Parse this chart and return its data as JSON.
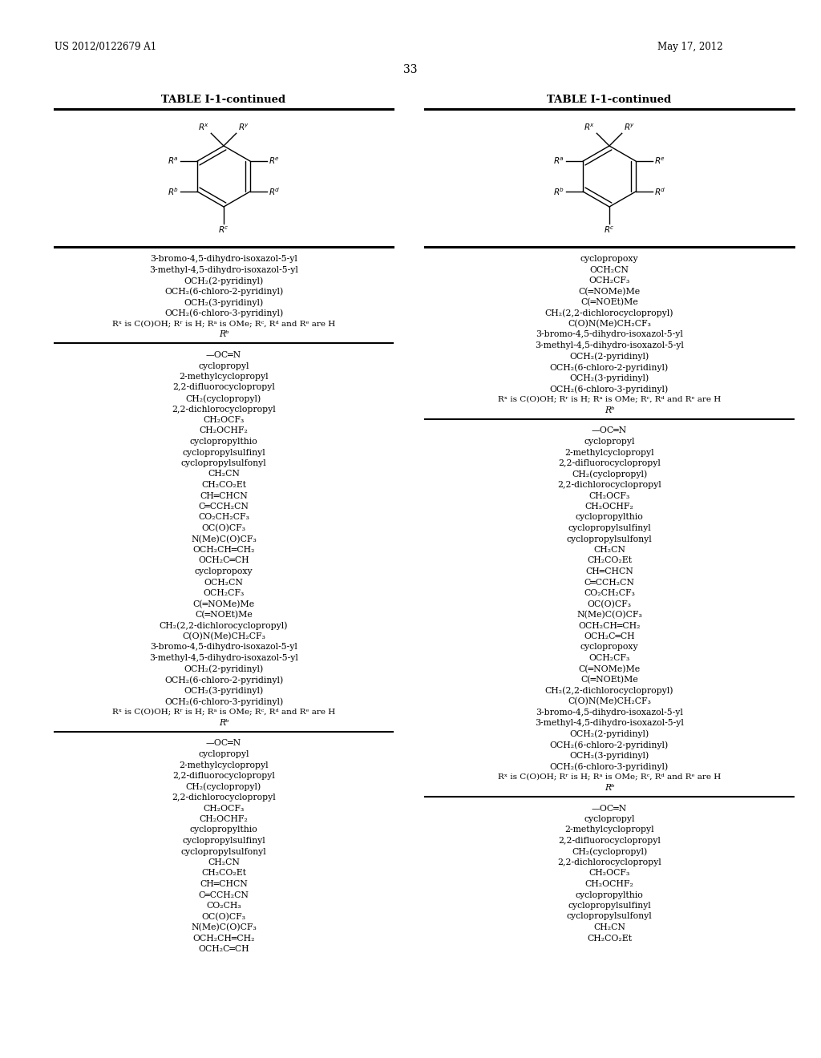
{
  "page_num": "33",
  "patent_num": "US 2012/0122679 A1",
  "patent_date": "May 17, 2012",
  "table_title": "TABLE I-1-continued",
  "background_color": "#ffffff",
  "text_color": "#000000",
  "left_col": {
    "section1_items": [
      "3-bromo-4,5-dihydro-isoxazol-5-yl",
      "3-methyl-4,5-dihydro-isoxazol-5-yl",
      "OCH₂(2-pyridinyl)",
      "OCH₂(6-chloro-2-pyridinyl)",
      "OCH₂(3-pyridinyl)",
      "OCH₂(6-chloro-3-pyridinyl)"
    ],
    "section1_note": "Rˣ is C(O)OH; Rʳ is H; Rᵃ is OMe; Rᶜ, Rᵈ and Rᵉ are H",
    "section1_subhead": "Rᵇ",
    "section2_items": [
      "—OC═N",
      "cyclopropyl",
      "2-methylcyclopropyl",
      "2,2-difluorocyclopropyl",
      "CH₂(cyclopropyl)",
      "2,2-dichlorocyclopropyl",
      "CH₂OCF₃",
      "CH₂OCHF₂",
      "cyclopropylthio",
      "cyclopropylsulfinyl",
      "cyclopropylsulfonyl",
      "CH₂CN",
      "CH₂CO₂Et",
      "CH═CHCN",
      "C═CCH₂CN",
      "CO₂CH₂CF₃",
      "OC(O)CF₃",
      "N(Me)C(O)CF₃",
      "OCH₂CH═CH₂",
      "OCH₂C═CH",
      "cyclopropoxy",
      "OCH₂CN",
      "OCH₂CF₃",
      "C(═NOMe)Me",
      "C(═NOEt)Me",
      "CH₂(2,2-dichlorocyclopropyl)",
      "C(O)N(Me)CH₂CF₃",
      "3-bromo-4,5-dihydro-isoxazol-5-yl",
      "3-methyl-4,5-dihydro-isoxazol-5-yl",
      "OCH₂(2-pyridinyl)",
      "OCH₂(6-chloro-2-pyridinyl)",
      "OCH₂(3-pyridinyl)",
      "OCH₂(6-chloro-3-pyridinyl)"
    ],
    "section2_note": "Rˣ is C(O)OH; Rʳ is H; Rᵃ is OMe; Rᶜ, Rᵈ and Rᵉ are H",
    "section2_subhead": "Rᵇ",
    "section3_items": [
      "—OC═N",
      "cyclopropyl",
      "2-methylcyclopropyl",
      "2,2-difluorocyclopropyl",
      "CH₂(cyclopropyl)",
      "2,2-dichlorocyclopropyl",
      "CH₂OCF₃",
      "CH₂OCHF₂",
      "cyclopropylthio",
      "cyclopropylsulfinyl",
      "cyclopropylsulfonyl",
      "CH₂CN",
      "CH₂CO₂Et",
      "CH═CHCN",
      "C═CCH₂CN",
      "CO₂CH₃",
      "OC(O)CF₃",
      "N(Me)C(O)CF₃",
      "OCH₂CH═CH₂",
      "OCH₂C═CH"
    ]
  },
  "right_col": {
    "section1_items": [
      "cyclopropoxy",
      "OCH₂CN",
      "OCH₂CF₃",
      "C(═NOMe)Me",
      "C(═NOEt)Me",
      "CH₂(2,2-dichlorocyclopropyl)",
      "C(O)N(Me)CH₂CF₃",
      "3-bromo-4,5-dihydro-isoxazol-5-yl",
      "3-methyl-4,5-dihydro-isoxazol-5-yl",
      "OCH₂(2-pyridinyl)",
      "OCH₂(6-chloro-2-pyridinyl)",
      "OCH₂(3-pyridinyl)",
      "OCH₂(6-chloro-3-pyridinyl)"
    ],
    "section1_note": "Rˣ is C(O)OH; Rʳ is H; Rᵃ is OMe; Rᶜ, Rᵈ and Rᵉ are H",
    "section1_subhead": "Rᵇ",
    "section2_items": [
      "—OC═N",
      "cyclopropyl",
      "2-methylcyclopropyl",
      "2,2-difluorocyclopropyl",
      "CH₂(cyclopropyl)",
      "2,2-dichlorocyclopropyl",
      "CH₂OCF₃",
      "CH₂OCHF₂",
      "cyclopropylthio",
      "cyclopropylsulfinyl",
      "cyclopropylsulfonyl",
      "CH₂CN",
      "CH₂CO₂Et",
      "CH═CHCN",
      "C═CCH₂CN",
      "CO₂CH₂CF₃",
      "OC(O)CF₃",
      "N(Me)C(O)CF₃",
      "OCH₂CH═CH₂",
      "OCH₂C═CH",
      "cyclopropoxy",
      "OCH₂CF₃",
      "C(═NOMe)Me",
      "C(═NOEt)Me",
      "CH₂(2,2-dichlorocyclopropyl)",
      "C(O)N(Me)CH₂CF₃",
      "3-bromo-4,5-dihydro-isoxazol-5-yl",
      "3-methyl-4,5-dihydro-isoxazol-5-yl",
      "OCH₂(2-pyridinyl)",
      "OCH₂(6-chloro-2-pyridinyl)",
      "OCH₂(3-pyridinyl)",
      "OCH₂(6-chloro-3-pyridinyl)"
    ],
    "section2_note": "Rˣ is C(O)OH; Rʳ is H; Rᵃ is OMe; Rᶜ, Rᵈ and Rᵉ are H",
    "section2_subhead": "Rᵇ",
    "section3_items": [
      "—OC═N",
      "cyclopropyl",
      "2-methylcyclopropyl",
      "2,2-difluorocyclopropyl",
      "CH₂(cyclopropyl)",
      "2,2-dichlorocyclopropyl",
      "CH₂OCF₃",
      "CH₂OCHF₂",
      "cyclopropylthio",
      "cyclopropylsulfinyl",
      "cyclopropylsulfonyl",
      "CH₂CN",
      "CH₂CO₂Et"
    ]
  }
}
